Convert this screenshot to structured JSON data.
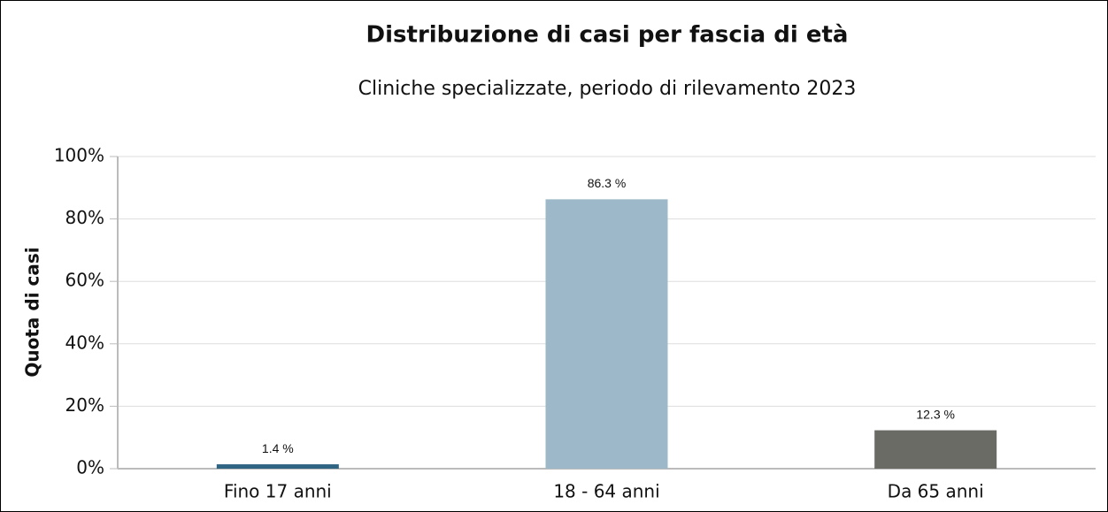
{
  "chart_data": {
    "type": "bar",
    "title": "Distribuzione di casi per fascia di età",
    "subtitle": "Cliniche specializzate, periodo di rilevamento 2023",
    "y_label": "Quota di casi",
    "categories": [
      "Fino 17 anni",
      "18 - 64 anni",
      "Da 65 anni"
    ],
    "values": [
      1.4,
      86.3,
      12.3
    ],
    "value_labels": [
      "1.4 %",
      "86.3 %",
      "12.3 %"
    ],
    "colors": [
      "#2f6482",
      "#9db8c8",
      "#6b6b66"
    ],
    "ylim": [
      0,
      100
    ],
    "yticks": [
      {
        "value": 0,
        "label": "0%"
      },
      {
        "value": 20,
        "label": "20%"
      },
      {
        "value": 40,
        "label": "40%"
      },
      {
        "value": 60,
        "label": "60%"
      },
      {
        "value": 80,
        "label": "80%"
      },
      {
        "value": 100,
        "label": "100%"
      }
    ],
    "grid": true
  }
}
